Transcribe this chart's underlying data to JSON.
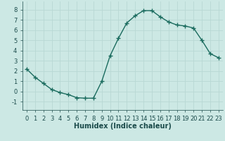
{
  "x": [
    0,
    1,
    2,
    3,
    4,
    5,
    6,
    7,
    8,
    9,
    10,
    11,
    12,
    13,
    14,
    15,
    16,
    17,
    18,
    19,
    20,
    21,
    22,
    23
  ],
  "y": [
    2.2,
    1.4,
    0.8,
    0.2,
    -0.1,
    -0.3,
    -0.6,
    -0.65,
    -0.65,
    1.0,
    3.5,
    5.2,
    6.7,
    7.4,
    7.9,
    7.9,
    7.3,
    6.8,
    6.5,
    6.4,
    6.2,
    5.0,
    3.7,
    3.3
  ],
  "line_color": "#1a6b5e",
  "marker": "+",
  "marker_size": 4,
  "line_width": 1.0,
  "bg_color": "#cce8e4",
  "grid_color": "#b8d8d4",
  "xlabel": "Humidex (Indice chaleur)",
  "xlim": [
    -0.5,
    23.5
  ],
  "ylim": [
    -1.8,
    8.8
  ],
  "yticks": [
    -1,
    0,
    1,
    2,
    3,
    4,
    5,
    6,
    7,
    8
  ],
  "xticks": [
    0,
    1,
    2,
    3,
    4,
    5,
    6,
    7,
    8,
    9,
    10,
    11,
    12,
    13,
    14,
    15,
    16,
    17,
    18,
    19,
    20,
    21,
    22,
    23
  ],
  "tick_fontsize": 6,
  "xlabel_fontsize": 7,
  "label_color": "#1a4a4a"
}
